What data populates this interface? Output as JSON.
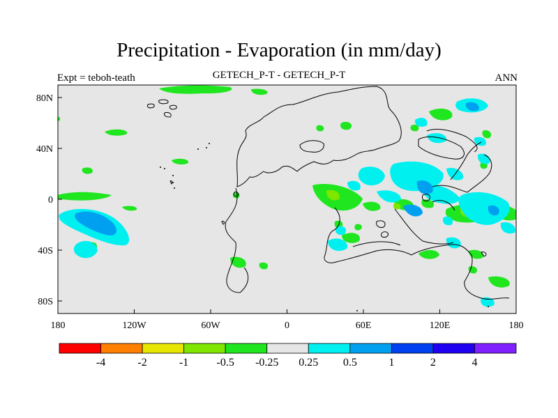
{
  "header": {
    "title": "Precipitation - Evaporation (in mm/day)",
    "left_string": "Expt = teboh-teath",
    "center_string": "GETECH_P-T - GETECH_P-T",
    "right_string": "ANN"
  },
  "map": {
    "x_ticks": [
      "180",
      "120W",
      "60W",
      "0",
      "60E",
      "120E",
      "180"
    ],
    "y_ticks": [
      "80N",
      "40N",
      "0",
      "40S",
      "80S"
    ],
    "background": "#e6e6e6"
  },
  "colorbar": {
    "colors": [
      "#ff0000",
      "#ff7f00",
      "#e6e600",
      "#80e600",
      "#1fe61f",
      "#e6e6e6",
      "#00f0f0",
      "#00a0f0",
      "#0040f0",
      "#2000f0",
      "#8020ff"
    ],
    "labels": [
      "-4",
      "-2",
      "-1",
      "-0.5",
      "-0.25",
      "0.25",
      "0.5",
      "1",
      "2",
      "4"
    ]
  }
}
